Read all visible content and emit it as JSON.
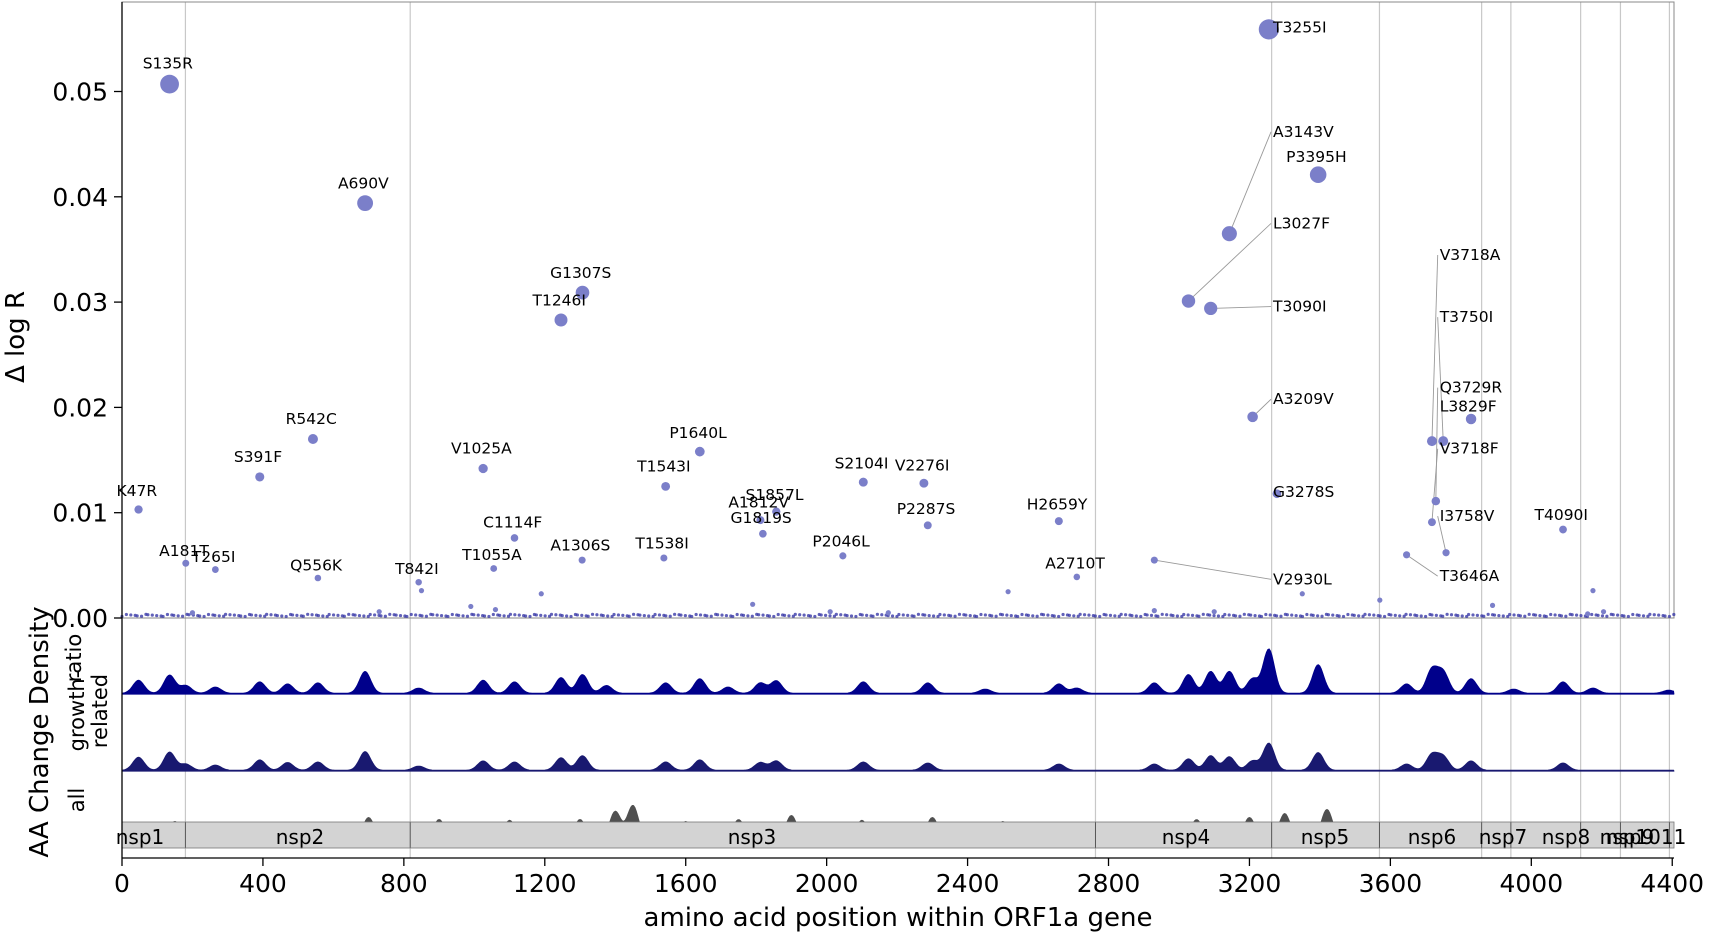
{
  "chart_data": {
    "type": "scatter",
    "title": "",
    "xlabel": "amino acid position within ORF1a gene",
    "ylabel": "Δ log R",
    "ylabel_tracks": "AA Change Density",
    "xlim": [
      0,
      4405
    ],
    "ylim": [
      0,
      0.0585
    ],
    "xticks": [
      0,
      400,
      800,
      1200,
      1600,
      2000,
      2400,
      2800,
      3200,
      3600,
      4000,
      4400
    ],
    "yticks": [
      {
        "v": 0.0,
        "label": "0.00"
      },
      {
        "v": 0.01,
        "label": "0.01"
      },
      {
        "v": 0.02,
        "label": "0.02"
      },
      {
        "v": 0.03,
        "label": "0.03"
      },
      {
        "v": 0.04,
        "label": "0.04"
      },
      {
        "v": 0.05,
        "label": "0.05"
      }
    ],
    "point_color": "#7b7fc9",
    "boundaries": [
      180,
      818,
      2763,
      3263,
      3569,
      3859,
      3942,
      4140,
      4253,
      4392
    ],
    "points": [
      {
        "label": "S135R",
        "x": 135,
        "y": 0.0507,
        "lx": 130,
        "ly": 0.0522
      },
      {
        "label": "A690V",
        "x": 690,
        "y": 0.0394,
        "lx": 685,
        "ly": 0.0408
      },
      {
        "label": "G1307S",
        "x": 1307,
        "y": 0.0309,
        "lx": 1302,
        "ly": 0.0323
      },
      {
        "label": "T1246I",
        "x": 1246,
        "y": 0.0283,
        "lx": 1241,
        "ly": 0.0297
      },
      {
        "label": "R542C",
        "x": 542,
        "y": 0.017,
        "lx": 537,
        "ly": 0.0184
      },
      {
        "label": "S391F",
        "x": 391,
        "y": 0.0134,
        "lx": 386,
        "ly": 0.0148
      },
      {
        "label": "V1025A",
        "x": 1025,
        "y": 0.0142,
        "lx": 1020,
        "ly": 0.0156
      },
      {
        "label": "P1640L",
        "x": 1640,
        "y": 0.0158,
        "lx": 1635,
        "ly": 0.0171
      },
      {
        "label": "T1543I",
        "x": 1543,
        "y": 0.0125,
        "lx": 1538,
        "ly": 0.0139
      },
      {
        "label": "K47R",
        "x": 47,
        "y": 0.0103,
        "lx": 42,
        "ly": 0.0116
      },
      {
        "label": "S2104I",
        "x": 2104,
        "y": 0.0129,
        "lx": 2099,
        "ly": 0.0142
      },
      {
        "label": "V2276I",
        "x": 2276,
        "y": 0.0128,
        "lx": 2271,
        "ly": 0.014
      },
      {
        "label": "S1857L",
        "x": 1857,
        "y": 0.0101,
        "lx": 1852,
        "ly": 0.0112
      },
      {
        "label": "A1812V",
        "x": 1812,
        "y": 0.0093,
        "lx": 1807,
        "ly": 0.0105
      },
      {
        "label": "G1819S",
        "x": 1819,
        "y": 0.008,
        "lx": 1814,
        "ly": 0.009
      },
      {
        "label": "P2287S",
        "x": 2287,
        "y": 0.0088,
        "lx": 2282,
        "ly": 0.0099
      },
      {
        "label": "H2659Y",
        "x": 2659,
        "y": 0.0092,
        "lx": 2654,
        "ly": 0.0103
      },
      {
        "label": "C1114F",
        "x": 1114,
        "y": 0.0076,
        "lx": 1109,
        "ly": 0.0086
      },
      {
        "label": "P2046L",
        "x": 2046,
        "y": 0.0059,
        "lx": 2041,
        "ly": 0.0068
      },
      {
        "label": "A1306S",
        "x": 1306,
        "y": 0.0055,
        "lx": 1301,
        "ly": 0.0064
      },
      {
        "label": "T1538I",
        "x": 1538,
        "y": 0.0057,
        "lx": 1533,
        "ly": 0.0066
      },
      {
        "label": "T1055A",
        "x": 1055,
        "y": 0.0047,
        "lx": 1050,
        "ly": 0.0055
      },
      {
        "label": "A181T",
        "x": 181,
        "y": 0.0052,
        "lx": 176,
        "ly": 0.0059
      },
      {
        "label": "T265I",
        "x": 265,
        "y": 0.0046,
        "lx": 260,
        "ly": 0.0053
      },
      {
        "label": "Q556K",
        "x": 556,
        "y": 0.0038,
        "lx": 551,
        "ly": 0.0045
      },
      {
        "label": "T842I",
        "x": 842,
        "y": 0.0034,
        "lx": 837,
        "ly": 0.0042
      },
      {
        "label": "A2710T",
        "x": 2710,
        "y": 0.0039,
        "lx": 2705,
        "ly": 0.0047
      },
      {
        "label": "T3255I",
        "x": 3255,
        "y": 0.0559,
        "lx": 3267,
        "ly": 0.0556,
        "anchor": "start"
      },
      {
        "label": "A3143V",
        "x": 3143,
        "y": 0.0365,
        "lx": 3267,
        "ly": 0.0457,
        "anchor": "start",
        "leader": true
      },
      {
        "label": "P3395H",
        "x": 3395,
        "y": 0.0421,
        "lx": 3390,
        "ly": 0.0433
      },
      {
        "label": "L3027F",
        "x": 3027,
        "y": 0.0301,
        "lx": 3267,
        "ly": 0.037,
        "anchor": "start",
        "leader": true
      },
      {
        "label": "T3090I",
        "x": 3090,
        "y": 0.0294,
        "lx": 3267,
        "ly": 0.0291,
        "anchor": "start",
        "leader": true
      },
      {
        "label": "A3209V",
        "x": 3209,
        "y": 0.0191,
        "lx": 3267,
        "ly": 0.0203,
        "anchor": "start",
        "leader": true
      },
      {
        "label": "G3278S",
        "x": 3278,
        "y": 0.0118,
        "lx": 3267,
        "ly": 0.0115,
        "anchor": "start"
      },
      {
        "label": "V2930L",
        "x": 2930,
        "y": 0.0055,
        "lx": 3267,
        "ly": 0.0032,
        "anchor": "start",
        "leader": true
      },
      {
        "label": "V3718A",
        "x": 3718,
        "y": 0.0168,
        "lx": 3740,
        "ly": 0.034,
        "anchor": "start",
        "leader": true
      },
      {
        "label": "T3750I",
        "x": 3750,
        "y": 0.0168,
        "lx": 3740,
        "ly": 0.0281,
        "anchor": "start",
        "leader": true
      },
      {
        "label": "Q3729R",
        "x": 3729,
        "y": 0.0111,
        "lx": 3740,
        "ly": 0.0214,
        "anchor": "start",
        "leader": true
      },
      {
        "label": "L3829F",
        "x": 3829,
        "y": 0.0189,
        "lx": 3740,
        "ly": 0.0196,
        "anchor": "start"
      },
      {
        "label": "V3718F",
        "x": 3718,
        "y": 0.0091,
        "lx": 3740,
        "ly": 0.0156,
        "anchor": "start",
        "leader": true
      },
      {
        "label": "I3758V",
        "x": 3758,
        "y": 0.0062,
        "lx": 3740,
        "ly": 0.0092,
        "anchor": "start",
        "leader": true
      },
      {
        "label": "T4090I",
        "x": 4090,
        "y": 0.0084,
        "lx": 4085,
        "ly": 0.0093
      },
      {
        "label": "T3646A",
        "x": 3646,
        "y": 0.006,
        "lx": 3740,
        "ly": 0.0035,
        "anchor": "start",
        "leader": true
      }
    ],
    "minor_points": [
      {
        "x": 200,
        "y": 0.0005
      },
      {
        "x": 730,
        "y": 0.0006
      },
      {
        "x": 850,
        "y": 0.0026
      },
      {
        "x": 990,
        "y": 0.0011
      },
      {
        "x": 1060,
        "y": 0.0008
      },
      {
        "x": 1190,
        "y": 0.0023
      },
      {
        "x": 1790,
        "y": 0.0013
      },
      {
        "x": 2010,
        "y": 0.0006
      },
      {
        "x": 2175,
        "y": 0.0005
      },
      {
        "x": 2515,
        "y": 0.0025
      },
      {
        "x": 2930,
        "y": 0.0007
      },
      {
        "x": 3100,
        "y": 0.0006
      },
      {
        "x": 3350,
        "y": 0.0023
      },
      {
        "x": 3570,
        "y": 0.0017
      },
      {
        "x": 3890,
        "y": 0.0012
      },
      {
        "x": 4175,
        "y": 0.0026
      },
      {
        "x": 4205,
        "y": 0.0006
      },
      {
        "x": 4160,
        "y": 0.0004
      }
    ],
    "tracks": [
      {
        "name": "ratio",
        "color": "#00008b",
        "peaks": [
          [
            47,
            0.25
          ],
          [
            135,
            0.35
          ],
          [
            181,
            0.15
          ],
          [
            265,
            0.12
          ],
          [
            391,
            0.22
          ],
          [
            470,
            0.18
          ],
          [
            556,
            0.2
          ],
          [
            690,
            0.42
          ],
          [
            842,
            0.1
          ],
          [
            1025,
            0.25
          ],
          [
            1114,
            0.22
          ],
          [
            1246,
            0.3
          ],
          [
            1307,
            0.36
          ],
          [
            1375,
            0.15
          ],
          [
            1543,
            0.2
          ],
          [
            1640,
            0.28
          ],
          [
            1720,
            0.12
          ],
          [
            1812,
            0.2
          ],
          [
            1857,
            0.24
          ],
          [
            2104,
            0.22
          ],
          [
            2287,
            0.2
          ],
          [
            2450,
            0.08
          ],
          [
            2659,
            0.18
          ],
          [
            2710,
            0.1
          ],
          [
            2930,
            0.2
          ],
          [
            3027,
            0.36
          ],
          [
            3090,
            0.42
          ],
          [
            3143,
            0.42
          ],
          [
            3209,
            0.28
          ],
          [
            3255,
            0.85
          ],
          [
            3395,
            0.55
          ],
          [
            3646,
            0.18
          ],
          [
            3718,
            0.45
          ],
          [
            3750,
            0.4
          ],
          [
            3829,
            0.28
          ],
          [
            3950,
            0.08
          ],
          [
            4090,
            0.22
          ],
          [
            4175,
            0.1
          ],
          [
            4390,
            0.06
          ]
        ]
      },
      {
        "name": "growth-related",
        "color": "#191970",
        "peaks": [
          [
            47,
            0.25
          ],
          [
            135,
            0.35
          ],
          [
            181,
            0.12
          ],
          [
            265,
            0.1
          ],
          [
            391,
            0.2
          ],
          [
            470,
            0.15
          ],
          [
            556,
            0.16
          ],
          [
            690,
            0.36
          ],
          [
            842,
            0.08
          ],
          [
            1025,
            0.18
          ],
          [
            1114,
            0.16
          ],
          [
            1246,
            0.24
          ],
          [
            1307,
            0.28
          ],
          [
            1543,
            0.16
          ],
          [
            1640,
            0.2
          ],
          [
            1812,
            0.15
          ],
          [
            1857,
            0.18
          ],
          [
            2104,
            0.16
          ],
          [
            2287,
            0.14
          ],
          [
            2659,
            0.12
          ],
          [
            2930,
            0.12
          ],
          [
            3027,
            0.22
          ],
          [
            3090,
            0.28
          ],
          [
            3143,
            0.26
          ],
          [
            3209,
            0.18
          ],
          [
            3255,
            0.52
          ],
          [
            3395,
            0.34
          ],
          [
            3646,
            0.12
          ],
          [
            3718,
            0.3
          ],
          [
            3750,
            0.26
          ],
          [
            3829,
            0.18
          ],
          [
            4090,
            0.14
          ]
        ]
      },
      {
        "name": "all",
        "color": "#505050",
        "peaks": [
          [
            30,
            0.22
          ],
          [
            150,
            0.45
          ],
          [
            350,
            0.35
          ],
          [
            520,
            0.4
          ],
          [
            700,
            0.55
          ],
          [
            900,
            0.5
          ],
          [
            1100,
            0.48
          ],
          [
            1300,
            0.5
          ],
          [
            1400,
            0.7
          ],
          [
            1450,
            0.85
          ],
          [
            1600,
            0.45
          ],
          [
            1750,
            0.5
          ],
          [
            1900,
            0.6
          ],
          [
            2100,
            0.48
          ],
          [
            2300,
            0.55
          ],
          [
            2500,
            0.45
          ],
          [
            2700,
            0.4
          ],
          [
            2900,
            0.35
          ],
          [
            3050,
            0.5
          ],
          [
            3200,
            0.55
          ],
          [
            3300,
            0.65
          ],
          [
            3420,
            0.75
          ],
          [
            3600,
            0.3
          ],
          [
            3720,
            0.25
          ],
          [
            3820,
            0.3
          ],
          [
            4000,
            0.2
          ],
          [
            4200,
            0.2
          ],
          [
            4380,
            0.28
          ]
        ]
      }
    ],
    "track_labels": [
      "ratio",
      "growth-",
      "related",
      "all"
    ],
    "segments": [
      {
        "label": "nsp1",
        "start": 0,
        "end": 180
      },
      {
        "label": "nsp2",
        "start": 180,
        "end": 818
      },
      {
        "label": "nsp3",
        "start": 818,
        "end": 2763
      },
      {
        "label": "nsp4",
        "start": 2763,
        "end": 3263
      },
      {
        "label": "nsp5",
        "start": 3263,
        "end": 3569
      },
      {
        "label": "nsp6",
        "start": 3569,
        "end": 3859
      },
      {
        "label": "nsp7",
        "start": 3859,
        "end": 3942
      },
      {
        "label": "nsp8",
        "start": 3942,
        "end": 4140
      },
      {
        "label": "nsp9",
        "start": 4140,
        "end": 4253
      },
      {
        "label": "nsp10",
        "start": 4253,
        "end": 4392
      },
      {
        "label": "11",
        "start": 4392,
        "end": 4405
      }
    ],
    "segment_label_texts": [
      "nsp1",
      "nsp2",
      "nsp3",
      "nsp4",
      "nsp5",
      "nsp6",
      "nsp7",
      "nsp8",
      "nsp9",
      "nsp1011"
    ]
  }
}
